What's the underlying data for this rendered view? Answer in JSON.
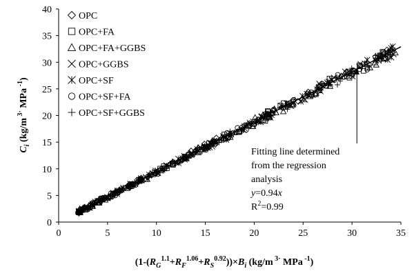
{
  "chart_data": {
    "type": "scatter",
    "xlim": [
      0,
      35
    ],
    "ylim": [
      0,
      40
    ],
    "x_ticks": [
      0,
      5,
      10,
      15,
      20,
      25,
      30,
      35
    ],
    "y_ticks": [
      0,
      5,
      10,
      15,
      20,
      25,
      30,
      35,
      40
    ],
    "grid": false,
    "legend_position": "top-left",
    "series": [
      {
        "name": "OPC",
        "marker": "diamond"
      },
      {
        "name": "OPC+FA",
        "marker": "square"
      },
      {
        "name": "OPC+FA+GGBS",
        "marker": "triangle"
      },
      {
        "name": "OPC+GGBS",
        "marker": "x"
      },
      {
        "name": "OPC+SF",
        "marker": "asterisk"
      },
      {
        "name": "OPC+SF+FA",
        "marker": "circle"
      },
      {
        "name": "OPC+SF+GGBS",
        "marker": "plus"
      }
    ],
    "point_x_range": [
      2,
      34.5
    ],
    "fit_line": {
      "slope": 0.94,
      "x_range": [
        2,
        35
      ]
    },
    "annotation": {
      "lines": [
        "Fitting line determined",
        "from the regression",
        "analysis"
      ],
      "equation_var": "y",
      "equation_eq": "=0.94",
      "equation_x": "x",
      "r2_base": "R",
      "r2_sup": "2",
      "r2_value": "=0.99",
      "arrow_target": [
        30.5,
        29
      ]
    }
  }
}
